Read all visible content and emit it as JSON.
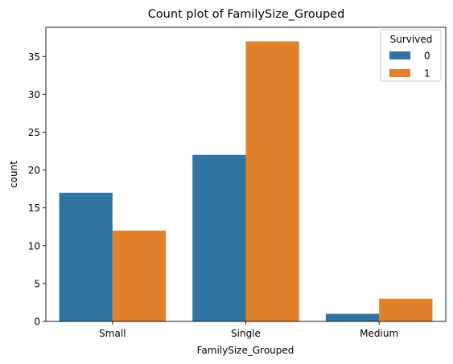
{
  "chart_data": {
    "type": "bar",
    "title": "Count plot of FamilySize_Grouped",
    "xlabel": "FamilySize_Grouped",
    "ylabel": "count",
    "categories": [
      "Small",
      "Single",
      "Medium"
    ],
    "series": [
      {
        "name": "0",
        "color": "#3274a1",
        "values": [
          17,
          22,
          1
        ]
      },
      {
        "name": "1",
        "color": "#e1812c",
        "values": [
          12,
          37,
          3
        ]
      }
    ],
    "ylim": [
      0,
      38.85
    ],
    "yticks": [
      0,
      5,
      10,
      15,
      20,
      25,
      30,
      35
    ],
    "grid": false,
    "legend": {
      "title": "Survived",
      "position": "top-right"
    }
  }
}
